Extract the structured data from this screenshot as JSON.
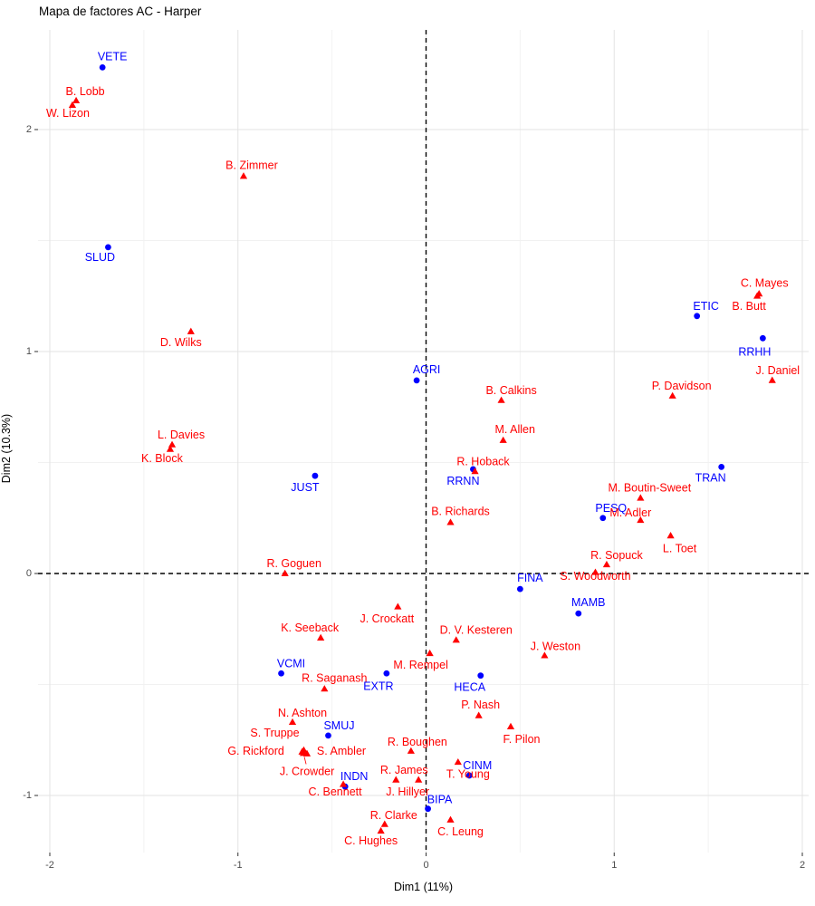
{
  "title": "Mapa de factores AC - Harper",
  "chart_data": {
    "type": "scatter",
    "title": "Mapa de factores AC - Harper",
    "xlabel": "Dim1 (11%)",
    "ylabel": "Dim2 (10.3%)",
    "xlim": [
      -2.06,
      2.03
    ],
    "ylim": [
      -1.25,
      2.45
    ],
    "x_ticks": [
      -2,
      -1,
      0,
      1,
      2
    ],
    "y_ticks": [
      -1,
      0,
      1,
      2
    ],
    "x_minor_ticks": [
      -1.5,
      -0.5,
      0.5,
      1.5
    ],
    "y_minor_ticks": [
      -0.5,
      0.5,
      1.5
    ],
    "grid": true,
    "legend": "none",
    "reference_lines": {
      "vline_x": 0,
      "hline_y": 0,
      "style": "dashed",
      "color": "#000000"
    },
    "series": [
      {
        "name": "categories",
        "marker": "circle",
        "color": "#0000FF",
        "points": [
          {
            "label": "VETE",
            "x": -1.72,
            "y": 2.28,
            "dx": 11,
            "dy": -12
          },
          {
            "label": "SLUD",
            "x": -1.69,
            "y": 1.47,
            "dx": -9,
            "dy": 11
          },
          {
            "label": "ETIC",
            "x": 1.44,
            "y": 1.16,
            "dx": 10,
            "dy": -11
          },
          {
            "label": "RRHH",
            "x": 1.79,
            "y": 1.06,
            "dx": -9,
            "dy": 15
          },
          {
            "label": "AGRI",
            "x": -0.05,
            "y": 0.87,
            "dx": 11,
            "dy": -12
          },
          {
            "label": "JUST",
            "x": -0.59,
            "y": 0.44,
            "dx": -11,
            "dy": 13
          },
          {
            "label": "TRAN",
            "x": 1.57,
            "y": 0.48,
            "dx": -12,
            "dy": 12
          },
          {
            "label": "RRNN",
            "x": 0.25,
            "y": 0.47,
            "dx": -11,
            "dy": 13
          },
          {
            "label": "PESQ",
            "x": 0.94,
            "y": 0.25,
            "dx": 9,
            "dy": -11
          },
          {
            "label": "FINA",
            "x": 0.5,
            "y": -0.07,
            "dx": 11,
            "dy": -12
          },
          {
            "label": "MAMB",
            "x": 0.81,
            "y": -0.18,
            "dx": 11,
            "dy": -12
          },
          {
            "label": "VCMI",
            "x": -0.77,
            "y": -0.45,
            "dx": 11,
            "dy": -11
          },
          {
            "label": "EXTR",
            "x": -0.21,
            "y": -0.45,
            "dx": -9,
            "dy": 14
          },
          {
            "label": "HECA",
            "x": 0.29,
            "y": -0.46,
            "dx": -12,
            "dy": 13
          },
          {
            "label": "SMUJ",
            "x": -0.52,
            "y": -0.73,
            "dx": 12,
            "dy": -11
          },
          {
            "label": "INDN",
            "x": -0.43,
            "y": -0.96,
            "dx": 10,
            "dy": -11
          },
          {
            "label": "CINM",
            "x": 0.23,
            "y": -0.91,
            "dx": 9,
            "dy": -11
          },
          {
            "label": "BIPA",
            "x": 0.01,
            "y": -1.06,
            "dx": 13,
            "dy": -10
          }
        ]
      },
      {
        "name": "individuals",
        "marker": "triangle",
        "color": "#FF0000",
        "points": [
          {
            "label": "B. Lobb",
            "x": -1.86,
            "y": 2.13,
            "dx": 10,
            "dy": -10
          },
          {
            "label": "W. Lizon",
            "x": -1.88,
            "y": 2.11,
            "dx": -5,
            "dy": 9
          },
          {
            "label": "B. Zimmer",
            "x": -0.97,
            "y": 1.79,
            "dx": 9,
            "dy": -12
          },
          {
            "label": "C. Mayes",
            "x": 1.77,
            "y": 1.26,
            "dx": 6,
            "dy": -12
          },
          {
            "label": "B. Butt",
            "x": 1.76,
            "y": 1.25,
            "dx": -9,
            "dy": 11
          },
          {
            "label": "J. Daniel",
            "x": 1.84,
            "y": 0.87,
            "dx": 6,
            "dy": -11
          },
          {
            "label": "P. Davidson",
            "x": 1.31,
            "y": 0.8,
            "dx": 10,
            "dy": -11
          },
          {
            "label": "D. Wilks",
            "x": -1.25,
            "y": 1.09,
            "dx": -11,
            "dy": 12
          },
          {
            "label": "B. Calkins",
            "x": 0.4,
            "y": 0.78,
            "dx": 11,
            "dy": -11
          },
          {
            "label": "M. Allen",
            "x": 0.41,
            "y": 0.6,
            "dx": 13,
            "dy": -12
          },
          {
            "label": "L. Davies",
            "x": -1.35,
            "y": 0.58,
            "dx": 10,
            "dy": -11
          },
          {
            "label": "K. Block",
            "x": -1.36,
            "y": 0.56,
            "dx": -9,
            "dy": 10
          },
          {
            "label": "R. Hoback",
            "x": 0.26,
            "y": 0.46,
            "dx": 9,
            "dy": -11
          },
          {
            "label": "M. Boutin-Sweet",
            "x": 1.14,
            "y": 0.34,
            "dx": 10,
            "dy": -11
          },
          {
            "label": "M. Adler",
            "x": 1.14,
            "y": 0.24,
            "dx": -11,
            "dy": -8
          },
          {
            "label": "L. Toet",
            "x": 1.3,
            "y": 0.17,
            "dx": 10,
            "dy": 14
          },
          {
            "label": "B. Richards",
            "x": 0.13,
            "y": 0.23,
            "dx": 11,
            "dy": -12
          },
          {
            "label": "R. Sopuck",
            "x": 0.96,
            "y": 0.04,
            "dx": 11,
            "dy": -10
          },
          {
            "label": "S. Woodworth",
            "x": 0.9,
            "y": 0.005,
            "dx": 0,
            "dy": 4
          },
          {
            "label": "R. Goguen",
            "x": -0.75,
            "y": 0,
            "dx": 10,
            "dy": -11
          },
          {
            "label": "J. Crockatt",
            "x": -0.15,
            "y": -0.15,
            "dx": -12,
            "dy": 13
          },
          {
            "label": "K. Seeback",
            "x": -0.56,
            "y": -0.29,
            "dx": -12,
            "dy": -11
          },
          {
            "label": "D. V. Kesteren",
            "x": 0.16,
            "y": -0.3,
            "dx": 22,
            "dy": -11
          },
          {
            "label": "J. Weston",
            "x": 0.63,
            "y": -0.37,
            "dx": 12,
            "dy": -10
          },
          {
            "label": "M. Rempel",
            "x": 0.02,
            "y": -0.36,
            "dx": -10,
            "dy": 13
          },
          {
            "label": "R. Saganash",
            "x": -0.54,
            "y": -0.52,
            "dx": 11,
            "dy": -12
          },
          {
            "label": "P. Nash",
            "x": 0.28,
            "y": -0.64,
            "dx": 2,
            "dy": -12
          },
          {
            "label": "N. Ashton",
            "x": -0.71,
            "y": -0.67,
            "dx": 11,
            "dy": -10
          },
          {
            "label": "S. Truppe",
            "x": -0.65,
            "y": -0.796,
            "dx": -32,
            "dy": -19
          },
          {
            "label": "G. Rickford",
            "x": -0.659,
            "y": -0.804,
            "dx": -51,
            "dy": -1
          },
          {
            "label": "S. Ambler",
            "x": -0.633,
            "y": -0.812,
            "dx": 38,
            "dy": -3
          },
          {
            "label": "J. Crowder",
            "x": -0.652,
            "y": -0.81,
            "dx": 4,
            "dy": 20,
            "leader": true
          },
          {
            "label": "R. Boughen",
            "x": -0.08,
            "y": -0.8,
            "dx": 7,
            "dy": -10
          },
          {
            "label": "F. Pilon",
            "x": 0.45,
            "y": -0.69,
            "dx": 12,
            "dy": 14
          },
          {
            "label": "R. James",
            "x": -0.16,
            "y": -0.93,
            "dx": 9,
            "dy": -11
          },
          {
            "label": "J. Hillyer",
            "x": -0.04,
            "y": -0.93,
            "dx": -12,
            "dy": 13
          },
          {
            "label": "T. Young",
            "x": 0.17,
            "y": -0.85,
            "dx": 11,
            "dy": 13
          },
          {
            "label": "C. Bennett",
            "x": -0.44,
            "y": -0.95,
            "dx": -9,
            "dy": 8
          },
          {
            "label": "R. Clarke",
            "x": -0.22,
            "y": -1.13,
            "dx": 10,
            "dy": -10
          },
          {
            "label": "C. Hughes",
            "x": -0.24,
            "y": -1.16,
            "dx": -11,
            "dy": 11
          },
          {
            "label": "C. Leung",
            "x": 0.13,
            "y": -1.11,
            "dx": 11,
            "dy": 13
          }
        ]
      }
    ]
  },
  "colors": {
    "category": "#0000FF",
    "individual": "#FF0000",
    "grid_major": "#E3E3E3",
    "grid_minor": "#F1F1F1",
    "tick_label": "#4D4D4D",
    "axis_tick": "#333333",
    "reference_line": "#000000",
    "background": "#FFFFFF",
    "title": "#000000"
  }
}
